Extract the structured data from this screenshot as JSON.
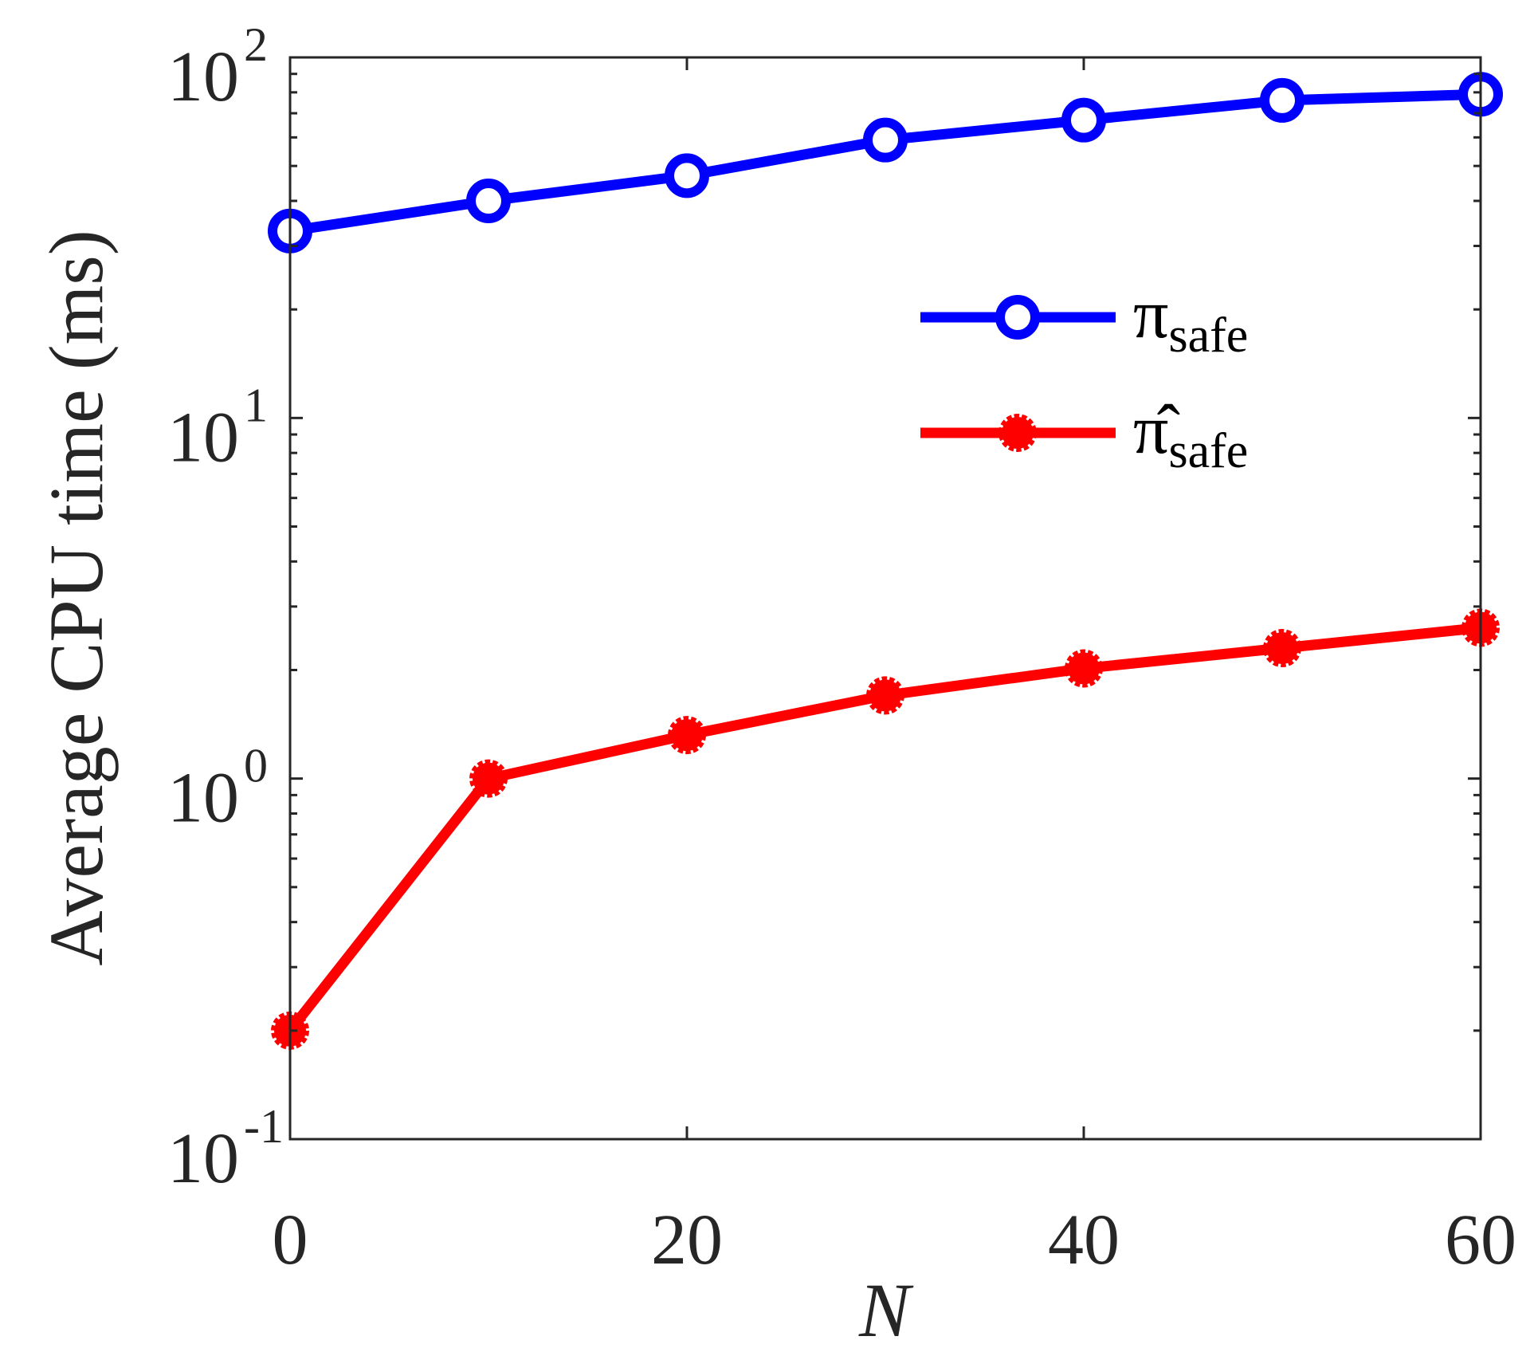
{
  "chart_data": {
    "type": "line",
    "xlabel": "N",
    "ylabel": "Average CPU time (ms)",
    "x": [
      0,
      10,
      20,
      30,
      40,
      50,
      60
    ],
    "xlim": [
      0,
      60
    ],
    "ylim": [
      0.1,
      100
    ],
    "yscale": "log",
    "grid": false,
    "legend_position": "top-right",
    "x_ticks": [
      0,
      20,
      40,
      60
    ],
    "x_tick_labels": [
      "0",
      "20",
      "40",
      "60"
    ],
    "y_ticks": [
      0.1,
      1,
      10,
      100
    ],
    "y_tick_labels": [
      {
        "base": "10",
        "exp": "-1"
      },
      {
        "base": "10",
        "exp": "0"
      },
      {
        "base": "10",
        "exp": "1"
      },
      {
        "base": "10",
        "exp": "2"
      }
    ],
    "series": [
      {
        "name": "π_safe",
        "symbol": "π",
        "subscript": "safe",
        "color": "#0000ff",
        "marker": "open-circle",
        "values": [
          33,
          40,
          47,
          59,
          67,
          76,
          79
        ]
      },
      {
        "name": "π̂_safe",
        "symbol": "π̂",
        "subscript": "safe",
        "color": "#ff0000",
        "marker": "filled-circle",
        "values": [
          0.2,
          1.0,
          1.32,
          1.7,
          2.02,
          2.3,
          2.62
        ]
      }
    ]
  }
}
